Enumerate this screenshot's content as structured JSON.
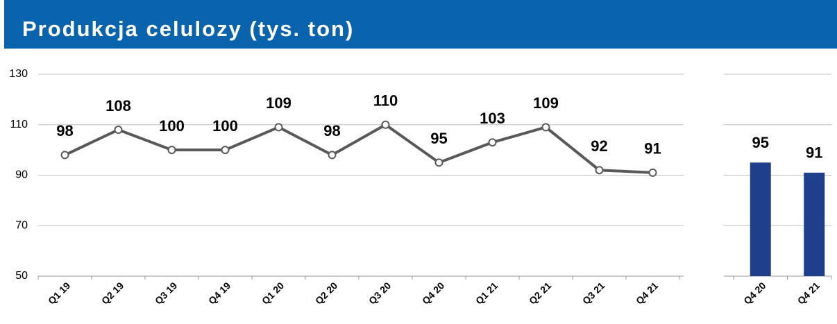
{
  "title": "Produkcja celulozy (tys. ton)",
  "chart_data": [
    {
      "type": "line",
      "categories": [
        "Q1 19",
        "Q2 19",
        "Q3 19",
        "Q4 19",
        "Q1 20",
        "Q2 20",
        "Q3 20",
        "Q4 20",
        "Q1 21",
        "Q2 21",
        "Q3 21",
        "Q4 21"
      ],
      "values": [
        98,
        108,
        100,
        100,
        109,
        98,
        110,
        95,
        103,
        109,
        92,
        91
      ],
      "color": "#595959",
      "ylim": [
        50,
        130
      ],
      "yticks": [
        50,
        70,
        90,
        110,
        130
      ],
      "grid": true,
      "ytick_labels": true
    },
    {
      "type": "bar",
      "categories": [
        "Q4 20",
        "Q4 21"
      ],
      "values": [
        95,
        91
      ],
      "color": "#1f3f8a",
      "ylim": [
        50,
        130
      ],
      "yticks": [
        50,
        70,
        90,
        110,
        130
      ],
      "grid": true,
      "ytick_labels": false
    }
  ]
}
